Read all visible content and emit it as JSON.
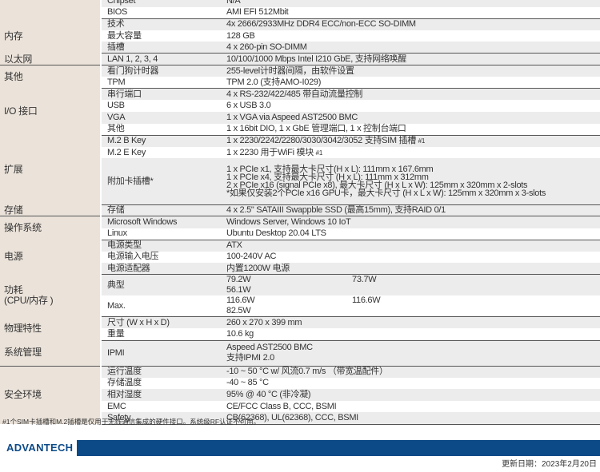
{
  "sections": [
    {
      "category": "",
      "rows": [
        {
          "label": "Chipset",
          "value": "N/A"
        },
        {
          "label": "BIOS",
          "value": "AMI EFI 512Mbit"
        }
      ]
    },
    {
      "category": "内存",
      "rows": [
        {
          "label": "技术",
          "value": "4x 2666/2933MHz DDR4 ECC/non-ECC SO-DIMM"
        },
        {
          "label": "最大容量",
          "value": "128 GB"
        },
        {
          "label": "插槽",
          "value": "4 x 260-pin SO-DIMM"
        }
      ]
    },
    {
      "category": "以太网",
      "rows": [
        {
          "label": "LAN 1, 2, 3, 4",
          "value": "10/100/1000 Mbps Intel I210 GbE, 支持网络唤醒"
        }
      ]
    },
    {
      "category": "其他",
      "rows": [
        {
          "label": "看门狗计时器",
          "value": "255-level计时器间隔，由软件设置"
        },
        {
          "label": "TPM",
          "value": "TPM 2.0 (支持AMO-I029)"
        }
      ]
    },
    {
      "category": "I/O 接口",
      "rows": [
        {
          "label": "串行端口",
          "value": "4 x RS-232/422/485 带自动流量控制"
        },
        {
          "label": "USB",
          "value": "6 x USB 3.0"
        },
        {
          "label": "VGA",
          "value": "1 x VGA via Aspeed AST2500 BMC"
        },
        {
          "label": "其他",
          "value": "1 x 16bit DIO, 1 x GbE 管理端口, 1 x 控制台端口"
        }
      ]
    },
    {
      "category": "扩展",
      "rows": [
        {
          "label": "M.2 B Key",
          "value": "1 x 2230/2242/2280/3030/3042/3052 支持SIM 插槽",
          "sup": "#1"
        },
        {
          "label": "M.2 E Key",
          "value": "1 x 2230 用于WiFi 模块",
          "sup": "#1"
        },
        {
          "label": "附加卡插槽*",
          "lines": [
            "1 x PCIe x1, 支持最大卡尺寸(H x L): 111mm x 167.6mm",
            "1 x PCIe x4, 支持最大卡尺寸 (H x L): 111mm x 312mm",
            "2 x PCIe x16 (signal PCIe x8), 最大卡尺寸 (H x L x W): 125mm x 320mm x 2-slots",
            "*如果仅安装2个PCIe x16 GPU卡，最大卡尺寸 (H x L x W): 125mm x 320mm x 3-slots"
          ]
        }
      ]
    },
    {
      "category": "存储",
      "rows": [
        {
          "label": "存储",
          "value": "4 x 2.5\" SATAIII Swappble SSD (最高15mm), 支持RAID 0/1"
        }
      ]
    },
    {
      "category": "操作系统",
      "rows": [
        {
          "label": "Microsoft Windows",
          "value": "Windows Server, Windows 10 IoT"
        },
        {
          "label": "Linux",
          "value": "Ubuntu Desktop 20.04 LTS"
        }
      ]
    },
    {
      "category": "电源",
      "rows": [
        {
          "label": "电源类型",
          "value": "ATX"
        },
        {
          "label": "电源输入电压",
          "value": "100-240V AC"
        },
        {
          "label": "电源适配器",
          "value": "内置1200W 电源"
        }
      ]
    },
    {
      "category": "功耗\n(CPU/内存 )",
      "rows": [
        {
          "label": "典型",
          "cols": [
            "79.2W",
            "73.7W",
            "56.1W"
          ]
        },
        {
          "label": "Max.",
          "cols": [
            "116.6W",
            "116.6W",
            "82.5W"
          ]
        }
      ]
    },
    {
      "category": "物理特性",
      "rows": [
        {
          "label": "尺寸 (W x H x D)",
          "value": "260 x 270 x 399 mm"
        },
        {
          "label": "重量",
          "value": "10.6 kg"
        }
      ]
    },
    {
      "category": "系统管理",
      "rows": [
        {
          "label": "IPMI",
          "lines": [
            "Aspeed AST2500 BMC",
            "支持IPMI 2.0"
          ]
        }
      ]
    },
    {
      "category": "安全环境",
      "rows": [
        {
          "label": "运行温度",
          "value": "-10 ~ 50 °C w/ 风流0.7 m/s （带宽温配件）"
        },
        {
          "label": "存储温度",
          "value": "-40 ~ 85 °C"
        },
        {
          "label": "相对湿度",
          "value": "95% @ 40 °C (非冷凝)"
        },
        {
          "label": "EMC",
          "value": "CE/FCC Class B, CCC, BSMI"
        },
        {
          "label": "Safety",
          "value": "CB(62368), UL(62368), CCC, BSMI"
        }
      ]
    }
  ],
  "footnote": "#1个SIM卡插槽和M.2插槽是仅用于无线通信集成的硬件接口。系统级RF认证不可用。",
  "brand": "ADVANTECH",
  "brand_color": "#0c4a87",
  "update_date": "更新日期：2023年2月20日"
}
